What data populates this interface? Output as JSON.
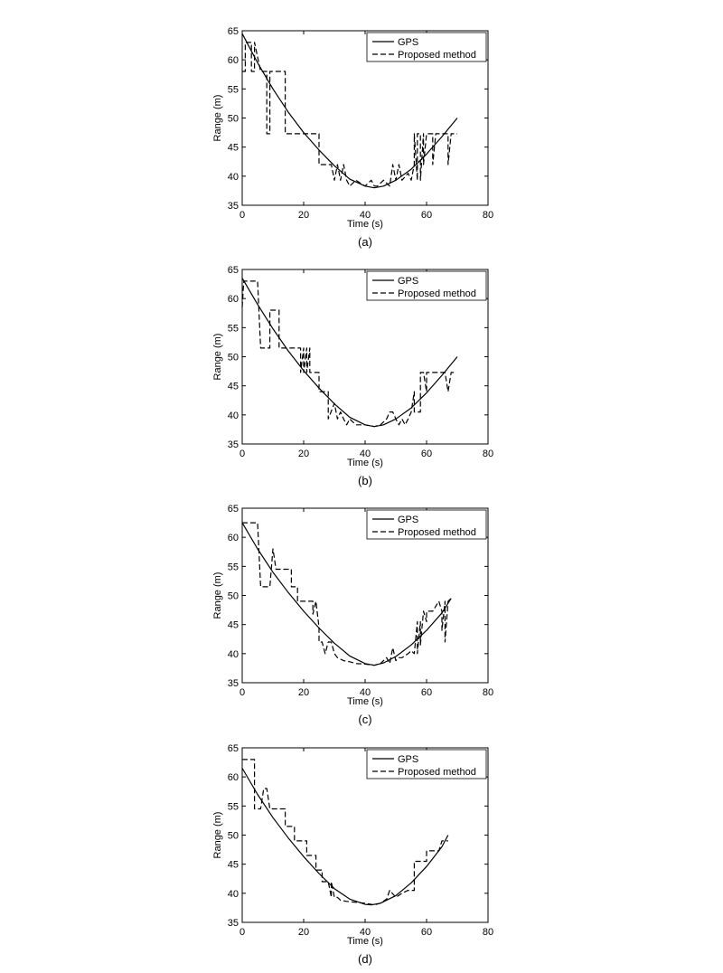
{
  "chart_data": [
    {
      "type": "line",
      "caption": "(a)",
      "xlabel": "Time (s)",
      "ylabel": "Range (m)",
      "xlim": [
        0,
        80
      ],
      "ylim": [
        35,
        65
      ],
      "xticks": [
        0,
        20,
        40,
        60,
        80
      ],
      "yticks": [
        35,
        40,
        45,
        50,
        55,
        60,
        65
      ],
      "grid": false,
      "legend_position": "top-right",
      "series": [
        {
          "name": "GPS",
          "style": "solid",
          "x": [
            0,
            5,
            10,
            15,
            20,
            25,
            30,
            35,
            40,
            43,
            46,
            50,
            55,
            60,
            65,
            70
          ],
          "y": [
            64.5,
            59.5,
            55.0,
            51.0,
            47.5,
            44.5,
            41.8,
            39.5,
            38.3,
            38.0,
            38.3,
            39.3,
            41.2,
            43.8,
            46.8,
            50.0
          ]
        },
        {
          "name": "Proposed method",
          "style": "dashed",
          "x": [
            0,
            1,
            1,
            2,
            3,
            3,
            4,
            4,
            6,
            8,
            8,
            9,
            9,
            10,
            10,
            11,
            11,
            14,
            14,
            17,
            20,
            22,
            24,
            25,
            25,
            28,
            29,
            30,
            31,
            32,
            33,
            34,
            35,
            37,
            40,
            42,
            43,
            44,
            46,
            48,
            49,
            50,
            51,
            52,
            54,
            55,
            56,
            56,
            57,
            57,
            58,
            58,
            59,
            59,
            60,
            61,
            62,
            62,
            63,
            63,
            65,
            65,
            67,
            67,
            68,
            68,
            70
          ],
          "y": [
            58.0,
            58.0,
            63.0,
            63.0,
            63.0,
            58.0,
            58.0,
            63.0,
            58.0,
            58.0,
            47.3,
            47.3,
            58.0,
            58.0,
            58.0,
            58.0,
            58.0,
            58.0,
            47.3,
            47.3,
            47.3,
            47.3,
            47.3,
            47.3,
            42.0,
            42.0,
            42.0,
            39.3,
            42.0,
            39.3,
            42.0,
            39.3,
            38.3,
            39.3,
            38.3,
            39.3,
            38.3,
            38.3,
            39.3,
            38.3,
            42.0,
            39.3,
            42.0,
            39.3,
            40.5,
            39.3,
            42.0,
            47.3,
            39.3,
            47.3,
            47.3,
            39.3,
            47.3,
            42.0,
            47.3,
            47.3,
            47.3,
            42.0,
            47.3,
            47.3,
            47.3,
            47.3,
            47.3,
            42.0,
            47.3,
            47.3,
            47.3
          ]
        }
      ]
    },
    {
      "type": "line",
      "caption": "(b)",
      "xlabel": "Time (s)",
      "ylabel": "Range (m)",
      "xlim": [
        0,
        80
      ],
      "ylim": [
        35,
        65
      ],
      "xticks": [
        0,
        20,
        40,
        60,
        80
      ],
      "yticks": [
        35,
        40,
        45,
        50,
        55,
        60,
        65
      ],
      "grid": false,
      "legend_position": "top-right",
      "series": [
        {
          "name": "GPS",
          "style": "solid",
          "x": [
            0,
            5,
            10,
            15,
            20,
            25,
            30,
            35,
            40,
            43,
            46,
            50,
            55,
            60,
            65,
            70
          ],
          "y": [
            63.5,
            59.0,
            54.8,
            51.0,
            47.6,
            44.6,
            41.9,
            39.6,
            38.3,
            38.0,
            38.3,
            39.3,
            41.2,
            43.8,
            46.8,
            50.0
          ]
        },
        {
          "name": "Proposed method",
          "style": "dashed",
          "x": [
            0,
            0.5,
            2,
            5,
            6,
            6,
            8,
            9,
            9,
            12,
            12,
            14,
            14,
            17,
            19,
            19,
            20,
            20,
            21,
            21,
            22,
            22,
            24,
            25,
            25,
            27,
            28,
            28,
            30,
            31,
            32,
            33,
            34,
            35,
            37,
            40,
            43,
            45,
            47,
            48,
            49,
            50,
            51,
            52,
            53,
            54,
            55,
            56,
            56,
            57,
            58,
            58,
            59,
            60,
            60,
            62,
            64,
            66,
            67,
            67,
            68,
            69
          ],
          "y": [
            58.5,
            63.0,
            63.0,
            63.0,
            51.5,
            51.5,
            51.5,
            51.5,
            58.0,
            58.0,
            51.5,
            51.5,
            51.5,
            51.5,
            51.5,
            47.3,
            51.5,
            47.3,
            51.5,
            47.3,
            51.5,
            47.3,
            47.3,
            47.3,
            44.0,
            44.0,
            44.0,
            39.3,
            42.0,
            39.3,
            40.5,
            39.3,
            38.3,
            39.3,
            38.3,
            38.3,
            38.0,
            38.3,
            39.3,
            40.5,
            40.5,
            39.3,
            38.3,
            39.3,
            38.3,
            39.3,
            40.5,
            44.0,
            40.5,
            40.5,
            40.5,
            47.3,
            47.3,
            44.0,
            47.3,
            47.3,
            47.3,
            47.3,
            44.0,
            44.0,
            47.3,
            47.3
          ]
        }
      ]
    },
    {
      "type": "line",
      "caption": "(c)",
      "xlabel": "Time (s)",
      "ylabel": "Range (m)",
      "xlim": [
        0,
        80
      ],
      "ylim": [
        35,
        65
      ],
      "xticks": [
        0,
        20,
        40,
        60,
        80
      ],
      "yticks": [
        35,
        40,
        45,
        50,
        55,
        60,
        65
      ],
      "grid": false,
      "legend_position": "top-right",
      "series": [
        {
          "name": "GPS",
          "style": "solid",
          "x": [
            0,
            5,
            10,
            15,
            20,
            25,
            30,
            35,
            40,
            43,
            46,
            50,
            55,
            60,
            65,
            68
          ],
          "y": [
            62.5,
            58.0,
            54.0,
            50.5,
            47.3,
            44.4,
            41.8,
            39.6,
            38.3,
            38.0,
            38.4,
            39.5,
            41.5,
            44.0,
            47.0,
            49.5
          ]
        },
        {
          "name": "Proposed method",
          "style": "dashed",
          "x": [
            0,
            2,
            5,
            6,
            6,
            8,
            9,
            10,
            11,
            14,
            14,
            16,
            16,
            18,
            18,
            23,
            23,
            24,
            25,
            25,
            26,
            27,
            28,
            29,
            30,
            31,
            33,
            35,
            37,
            40,
            43,
            45,
            47,
            48,
            49,
            50,
            51,
            52,
            54,
            55,
            56,
            57,
            57,
            58,
            58,
            59,
            59,
            60,
            60,
            62,
            64,
            65,
            65,
            66,
            66,
            67,
            67,
            68
          ],
          "y": [
            62.5,
            62.5,
            62.5,
            51.5,
            51.5,
            51.5,
            51.5,
            58.0,
            54.5,
            54.5,
            54.5,
            54.5,
            51.5,
            51.5,
            49.0,
            49.0,
            46.8,
            49.0,
            44.5,
            42.0,
            42.0,
            40.0,
            42.0,
            42.0,
            40.0,
            39.3,
            38.8,
            38.6,
            38.3,
            38.2,
            38.0,
            38.3,
            39.3,
            38.3,
            41.0,
            38.8,
            39.3,
            39.3,
            40.0,
            40.5,
            40.0,
            45.5,
            40.0,
            45.5,
            41.5,
            47.3,
            47.3,
            45.5,
            47.3,
            47.3,
            49.0,
            47.3,
            44.0,
            49.0,
            42.0,
            49.0,
            49.0,
            49.5
          ]
        }
      ]
    },
    {
      "type": "line",
      "caption": "(d)",
      "xlabel": "Time (s)",
      "ylabel": "Range (m)",
      "xlim": [
        0,
        80
      ],
      "ylim": [
        35,
        65
      ],
      "xticks": [
        0,
        20,
        40,
        60,
        80
      ],
      "yticks": [
        35,
        40,
        45,
        50,
        55,
        60,
        65
      ],
      "grid": false,
      "legend_position": "top-right",
      "series": [
        {
          "name": "GPS",
          "style": "solid",
          "x": [
            0,
            5,
            10,
            15,
            20,
            25,
            30,
            35,
            40,
            42,
            45,
            50,
            55,
            60,
            65,
            67
          ],
          "y": [
            61.5,
            57.0,
            53.0,
            49.5,
            46.3,
            43.4,
            40.8,
            39.0,
            38.1,
            38.0,
            38.3,
            39.6,
            41.8,
            44.6,
            48.0,
            50.0
          ]
        },
        {
          "name": "Proposed method",
          "style": "dashed",
          "x": [
            0,
            3,
            4,
            4,
            6,
            7,
            8,
            9,
            9,
            14,
            14,
            17,
            17,
            21,
            21,
            24,
            24,
            26,
            26,
            28,
            29,
            29,
            30,
            31,
            32,
            34,
            36,
            40,
            43,
            45,
            47,
            48,
            50,
            52,
            54,
            56,
            56,
            60,
            60,
            63,
            64,
            65,
            67
          ],
          "y": [
            63.0,
            63.0,
            63.0,
            54.5,
            54.5,
            58.0,
            58.0,
            54.5,
            54.5,
            54.5,
            51.5,
            51.5,
            49.0,
            49.0,
            46.5,
            46.5,
            44.0,
            44.0,
            42.0,
            42.0,
            39.3,
            42.0,
            39.3,
            39.3,
            38.8,
            38.6,
            38.5,
            38.3,
            38.0,
            38.3,
            39.0,
            40.5,
            39.3,
            40.0,
            40.5,
            40.5,
            45.5,
            45.5,
            47.3,
            47.3,
            47.3,
            49.0,
            49.0
          ]
        }
      ]
    }
  ]
}
